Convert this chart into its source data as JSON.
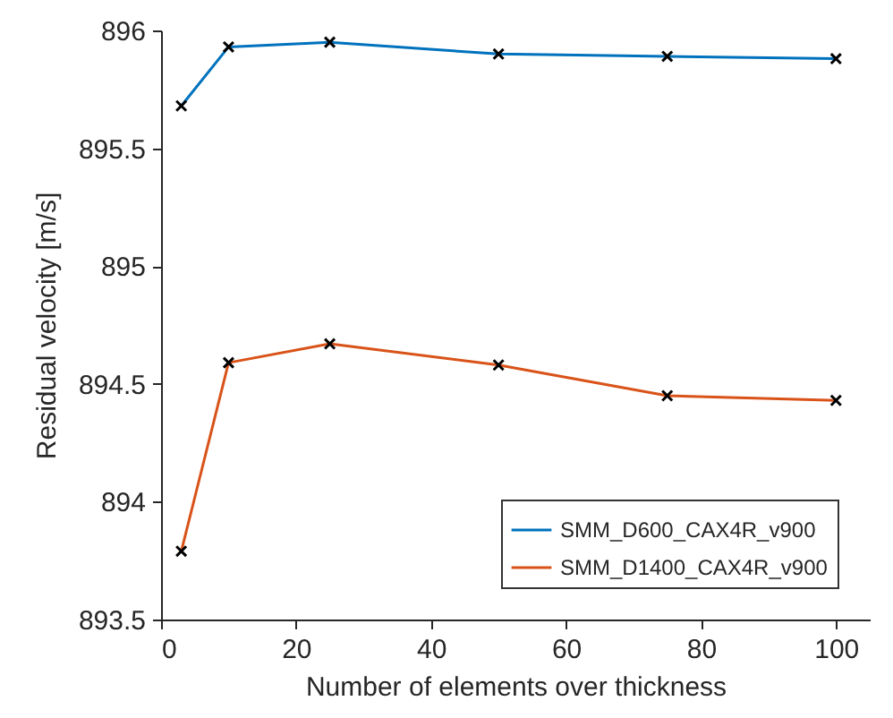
{
  "chart_data": {
    "type": "line",
    "xlabel": "Number of elements over thickness",
    "ylabel": "Residual velocity [m/s]",
    "x": [
      3,
      10,
      25,
      50,
      75,
      100
    ],
    "series": [
      {
        "name": "SMM_D600_CAX4R_v900",
        "color": "#0072bd",
        "values": [
          895.68,
          895.93,
          895.95,
          895.9,
          895.89,
          895.88
        ]
      },
      {
        "name": "SMM_D1400_CAX4R_v900",
        "color": "#d95319",
        "values": [
          893.79,
          894.59,
          894.67,
          894.58,
          894.45,
          894.43
        ]
      }
    ],
    "xlim": [
      0,
      105
    ],
    "xticks": [
      0,
      20,
      40,
      60,
      80,
      100
    ],
    "ylim": [
      893.5,
      896
    ],
    "yticks": [
      893.5,
      894,
      894.5,
      895,
      895.5,
      896
    ],
    "grid": false,
    "legend": "bottom right",
    "marker": "cross",
    "line_style": "solid"
  }
}
